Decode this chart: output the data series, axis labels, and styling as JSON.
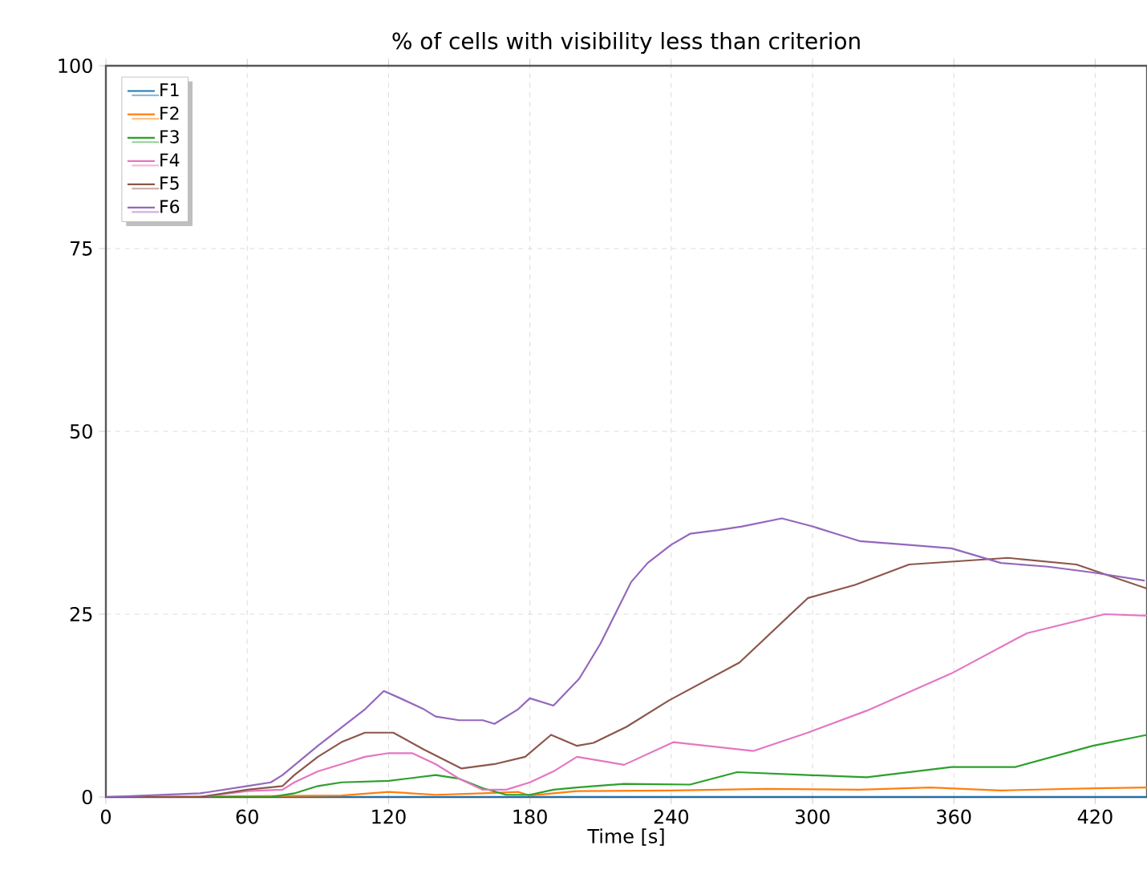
{
  "chart_data": {
    "type": "line",
    "title": "% of cells with visibility less than criterion",
    "xlabel": "Time [s]",
    "xlim": [
      0,
      442
    ],
    "ylim": [
      0,
      100
    ],
    "xticks": [
      0,
      60,
      120,
      180,
      240,
      300,
      360,
      420
    ],
    "yticks": [
      0,
      25,
      50,
      75,
      100
    ],
    "grid": true,
    "legend": "top left",
    "line_style": "solid",
    "marker": "none",
    "series": [
      {
        "name": "F1",
        "color": "#1f77b4",
        "x": [
          0,
          100,
          200,
          300,
          400,
          442
        ],
        "values": [
          0,
          0,
          0,
          0,
          0,
          0
        ]
      },
      {
        "name": "F2",
        "color": "#ff7f0e",
        "x": [
          0,
          100,
          120,
          140,
          160,
          175,
          180,
          200,
          240,
          280,
          320,
          350,
          380,
          420,
          442
        ],
        "values": [
          0,
          0.2,
          0.7,
          0.3,
          0.5,
          0.7,
          0.2,
          0.8,
          0.9,
          1.1,
          1,
          1.3,
          0.9,
          1.2,
          1.3
        ]
      },
      {
        "name": "F3",
        "color": "#2ca02c",
        "x": [
          0,
          70,
          80,
          90,
          100,
          120,
          140,
          150,
          160,
          170,
          180,
          190,
          200,
          220,
          248,
          268,
          298,
          323,
          359,
          386,
          419,
          442
        ],
        "values": [
          0,
          0,
          0.5,
          1.5,
          2,
          2.2,
          3,
          2.5,
          1.2,
          0.3,
          0.3,
          1,
          1.3,
          1.8,
          1.7,
          3.4,
          3,
          2.7,
          4.1,
          4.1,
          7,
          8.5
        ]
      },
      {
        "name": "F4",
        "color": "#e377c2",
        "x": [
          0,
          40,
          60,
          75,
          80,
          90,
          100,
          110,
          120,
          130,
          140,
          150,
          160,
          170,
          180,
          190,
          200,
          220,
          241,
          275,
          298,
          323,
          359,
          391,
          424,
          442
        ],
        "values": [
          0,
          0,
          0.8,
          1,
          2,
          3.5,
          4.5,
          5.5,
          6,
          6,
          4.5,
          2.5,
          1,
          1,
          2,
          3.5,
          5.5,
          4.4,
          7.5,
          6.3,
          8.8,
          11.8,
          16.9,
          22.4,
          25,
          24.8
        ]
      },
      {
        "name": "F5",
        "color": "#8c564b",
        "x": [
          0,
          40,
          60,
          75,
          80,
          90,
          100,
          110,
          122,
          135,
          151,
          165,
          178,
          189,
          200,
          207,
          221,
          239,
          269,
          298,
          318,
          341,
          383,
          412,
          442
        ],
        "values": [
          0,
          0,
          1,
          1.5,
          3,
          5.5,
          7.5,
          8.8,
          8.8,
          6.5,
          3.9,
          4.5,
          5.5,
          8.5,
          7,
          7.4,
          9.6,
          13.2,
          18.4,
          27.2,
          29,
          31.8,
          32.7,
          31.8,
          28.5
        ]
      },
      {
        "name": "F6",
        "color": "#9467bd",
        "x": [
          0,
          40,
          60,
          70,
          75,
          90,
          100,
          110,
          118,
          125,
          135,
          140,
          150,
          160,
          165,
          175,
          180,
          190,
          201,
          210,
          223,
          230,
          240,
          248,
          260,
          270,
          287,
          300,
          310,
          320,
          340,
          359,
          380,
          400,
          419,
          441
        ],
        "values": [
          0,
          0.5,
          1.5,
          2,
          3,
          7,
          9.5,
          12,
          14.5,
          13.5,
          12,
          11,
          10.5,
          10.5,
          10,
          12,
          13.5,
          12.5,
          16.2,
          21,
          29.4,
          32,
          34.5,
          36,
          36.5,
          37,
          38.1,
          37,
          36,
          35,
          34.5,
          34,
          32,
          31.5,
          30.7,
          29.6
        ]
      }
    ]
  }
}
